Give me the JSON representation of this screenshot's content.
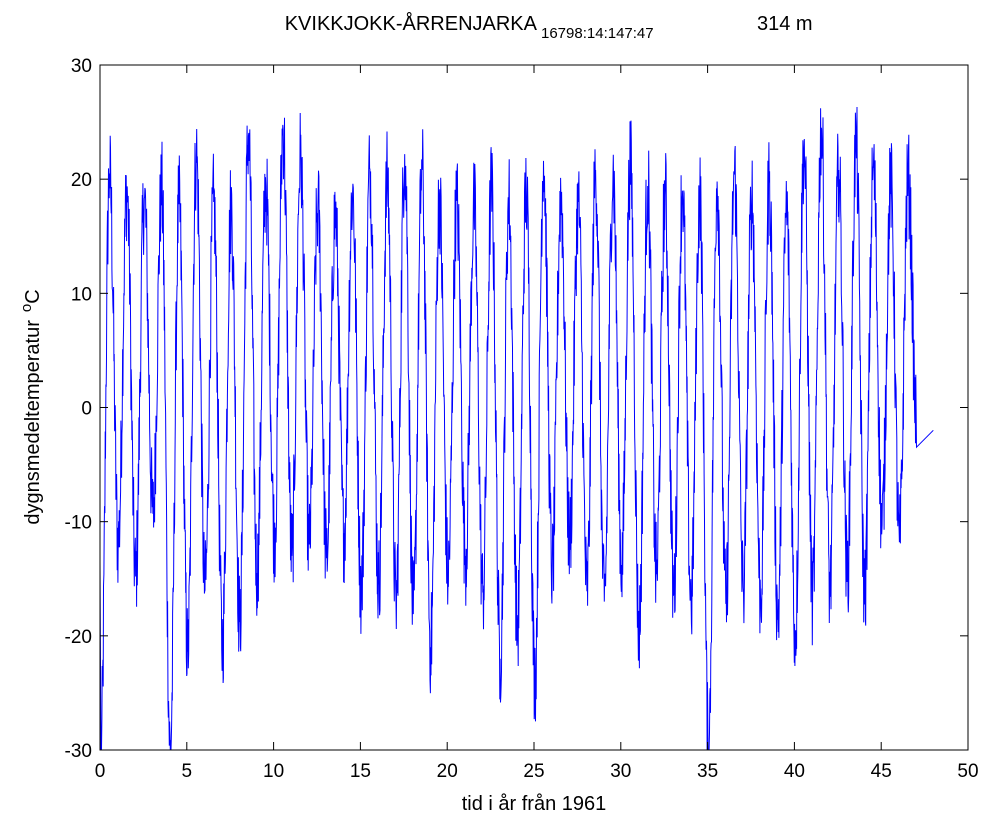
{
  "chart_data": {
    "type": "line",
    "title": "KVIKKJOKK-ÅRRENJARKA",
    "title_subscript": "16798:14:147:47",
    "title_elevation": "314 m",
    "xlabel": "tid i år från 1961",
    "ylabel": "dygnsmedeltemperatur",
    "ylabel_unit_superscript": "o",
    "ylabel_unit": "C",
    "xlim": [
      0,
      50
    ],
    "ylim": [
      -30,
      30
    ],
    "xticks": [
      0,
      5,
      10,
      15,
      20,
      25,
      30,
      35,
      40,
      45,
      50
    ],
    "yticks": [
      -30,
      -20,
      -10,
      0,
      10,
      20,
      30
    ],
    "grid": false,
    "series_color": "#0000ff",
    "series": [
      {
        "summer_peaks": [
          20.5,
          19.0,
          18.3,
          19.1,
          17.8,
          22.0,
          18.0,
          17.6,
          23.8,
          19.4,
          24.4,
          22.0,
          17.5,
          17.0,
          18.9,
          20.9,
          20.0,
          22.2,
          20.8,
          18.3,
          18.1,
          17.6,
          19.2,
          18.1,
          19.0,
          21.6,
          18.5,
          18.0,
          20.8,
          20.5,
          21.4,
          19.4,
          18.6,
          19.0,
          18.6,
          19.8,
          20.5,
          18.4,
          19.7,
          17.4,
          22.6,
          24.5,
          20.8,
          23.1,
          21.0,
          19.5,
          19.9
        ],
        "winter_minima": [
          -30,
          -11.8,
          -14.8,
          -9.3,
          -30,
          -21.4,
          -16.0,
          -20.7,
          -18.8,
          -14.5,
          -11.1,
          -13.0,
          -12.0,
          -13.2,
          -11.0,
          -16.0,
          -15.5,
          -17.1,
          -18.1,
          -21.0,
          -14.7,
          -13.0,
          -16.2,
          -22.0,
          -19.3,
          -23.8,
          -14.2,
          -11.8,
          -16.1,
          -17.0,
          -13.8,
          -19.5,
          -14.6,
          -16.3,
          -17.0,
          -30,
          -17.2,
          -15.8,
          -16.5,
          -18.3,
          -19.9,
          -16.7,
          -15.8,
          -14.7,
          -16.1,
          -10.3,
          -11.8
        ],
        "start_value": -13.5,
        "end_value": -2.0
      }
    ]
  }
}
